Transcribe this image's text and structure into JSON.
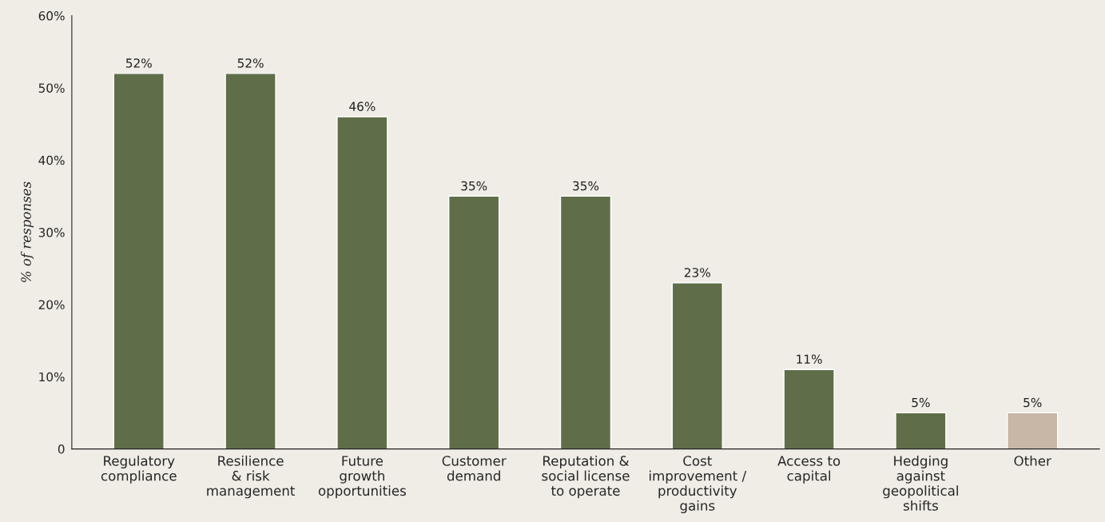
{
  "chart_data": {
    "type": "bar",
    "ylabel": "% of responses",
    "categories": [
      "Regulatory\ncompliance",
      "Resilience\n& risk\nmanagement",
      "Future\ngrowth\nopportunities",
      "Customer\ndemand",
      "Reputation &\nsocial license\nto operate",
      "Cost\nimprovement /\nproductivity\ngains",
      "Access to\ncapital",
      "Hedging\nagainst\ngeopolitical\nshifts",
      "Other"
    ],
    "values": [
      52,
      52,
      46,
      35,
      35,
      23,
      11,
      5,
      5
    ],
    "value_labels": [
      "52%",
      "52%",
      "46%",
      "35%",
      "35%",
      "23%",
      "11%",
      "5%",
      "5%"
    ],
    "colors": [
      "#5f6e48",
      "#5f6e48",
      "#5f6e48",
      "#5f6e48",
      "#5f6e48",
      "#5f6e48",
      "#5f6e48",
      "#5f6e48",
      "#c8b6a6"
    ],
    "ylim": [
      0,
      60
    ],
    "yticks": [
      0,
      {
        "value": 10,
        "label": "10%"
      },
      {
        "value": 20,
        "label": "20%"
      },
      {
        "value": 30,
        "label": "30%"
      },
      {
        "value": 40,
        "label": "40%"
      },
      {
        "value": 50,
        "label": "50%"
      },
      {
        "value": 60,
        "label": "60%"
      }
    ],
    "grid": false,
    "legend": false
  }
}
